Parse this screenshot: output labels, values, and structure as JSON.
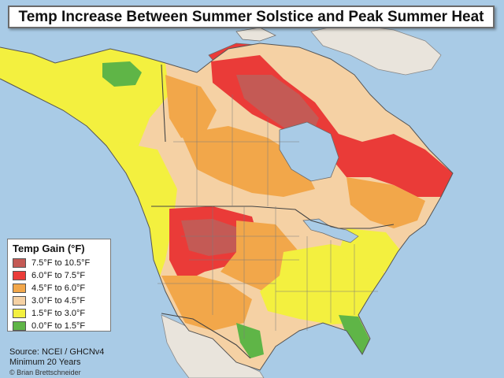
{
  "title": "Temp Increase Between Summer Solstice and Peak Summer Heat",
  "legend": {
    "title": "Temp Gain (°F)",
    "items": [
      {
        "label": "7.5°F to 10.5°F",
        "color": "#c45a55"
      },
      {
        "label": "6.0°F to 7.5°F",
        "color": "#ea3b38"
      },
      {
        "label": "4.5°F to 6.0°F",
        "color": "#f2a74a"
      },
      {
        "label": "3.0°F to 4.5°F",
        "color": "#f5d1a4"
      },
      {
        "label": "1.5°F to 3.0°F",
        "color": "#f3f03f"
      },
      {
        "label": "0.0°F to 1.5°F",
        "color": "#5fb547"
      }
    ]
  },
  "source": {
    "line1": "Source: NCEI / GHCNv4",
    "line2": "Minimum 20 Years",
    "credit": "© Brian Brettschneider"
  },
  "colors": {
    "ocean": "#a9cbe6",
    "land_outside": "#e9e4dc",
    "border": "#5a5a5a"
  }
}
